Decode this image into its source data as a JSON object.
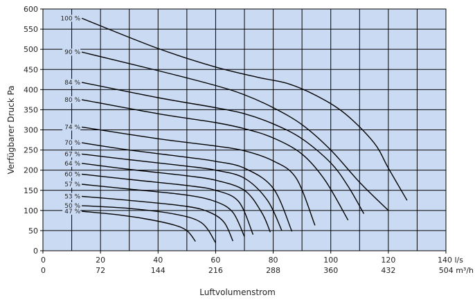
{
  "chart_data": {
    "type": "line",
    "title": "",
    "xlabel": "Luftvolumenstrom",
    "ylabel": "Verfügbarer Druck Pa",
    "xlim": [
      0,
      140
    ],
    "ylim": [
      0,
      600
    ],
    "x_ticks": [
      0,
      20,
      40,
      60,
      80,
      100,
      120,
      140
    ],
    "x_tick_labels": [
      "0",
      "20",
      "40",
      "60",
      "80",
      "100",
      "120",
      "140 l/s"
    ],
    "x2_tick_labels": [
      "0",
      "72",
      "144",
      "216",
      "288",
      "360",
      "432",
      "504 m³/h"
    ],
    "y_ticks": [
      0,
      50,
      100,
      150,
      200,
      250,
      300,
      350,
      400,
      450,
      500,
      550,
      600
    ],
    "grid": true,
    "plot_background": "#c9daf2",
    "line_color": "#000000",
    "series": [
      {
        "name": "100 %",
        "x": [
          13.5,
          40,
          60,
          75,
          85,
          95,
          105,
          115,
          120,
          126.5
        ],
        "y": [
          577,
          502,
          456,
          430,
          415,
          385,
          340,
          268,
          205,
          125
        ]
      },
      {
        "name": "90 %",
        "x": [
          13.5,
          40,
          60,
          70,
          80,
          90,
          100,
          110,
          120
        ],
        "y": [
          493,
          447,
          410,
          387,
          355,
          313,
          250,
          170,
          100
        ]
      },
      {
        "name": "84 %",
        "x": [
          13.5,
          40,
          60,
          70,
          80,
          90,
          100,
          106,
          111.5
        ],
        "y": [
          418,
          380,
          355,
          340,
          315,
          278,
          218,
          160,
          92
        ]
      },
      {
        "name": "80 %",
        "x": [
          13.5,
          40,
          60,
          70,
          80,
          90,
          98,
          106
        ],
        "y": [
          375,
          340,
          318,
          303,
          280,
          240,
          175,
          76
        ]
      },
      {
        "name": "74 %",
        "x": [
          13.5,
          40,
          60,
          70,
          80,
          88,
          94.5
        ],
        "y": [
          307,
          278,
          260,
          248,
          223,
          180,
          63
        ]
      },
      {
        "name": "70 %",
        "x": [
          13.5,
          30,
          50,
          60,
          70,
          80,
          86.5
        ],
        "y": [
          268,
          250,
          232,
          222,
          205,
          155,
          48
        ]
      },
      {
        "name": "67 %",
        "x": [
          13.5,
          30,
          50,
          60,
          70,
          78,
          83
        ],
        "y": [
          240,
          226,
          210,
          200,
          180,
          125,
          50
        ]
      },
      {
        "name": "64 %",
        "x": [
          13.5,
          30,
          50,
          60,
          70,
          76,
          79
        ],
        "y": [
          217,
          202,
          186,
          175,
          150,
          95,
          46
        ]
      },
      {
        "name": "60 %",
        "x": [
          13.5,
          30,
          50,
          60,
          68,
          73
        ],
        "y": [
          190,
          177,
          162,
          150,
          122,
          40
        ]
      },
      {
        "name": "57 %",
        "x": [
          13.5,
          30,
          50,
          60,
          66,
          70
        ],
        "y": [
          165,
          153,
          138,
          122,
          95,
          35
        ]
      },
      {
        "name": "53 %",
        "x": [
          13.5,
          30,
          50,
          58,
          63,
          66
        ],
        "y": [
          135,
          125,
          110,
          95,
          70,
          24
        ]
      },
      {
        "name": "50 %",
        "x": [
          13.5,
          30,
          45,
          55,
          60
        ],
        "y": [
          112,
          105,
          92,
          70,
          20
        ]
      },
      {
        "name": "47 %",
        "x": [
          13.5,
          25,
          35,
          45,
          50,
          53
        ],
        "y": [
          98,
          90,
          80,
          65,
          50,
          23
        ]
      }
    ]
  }
}
